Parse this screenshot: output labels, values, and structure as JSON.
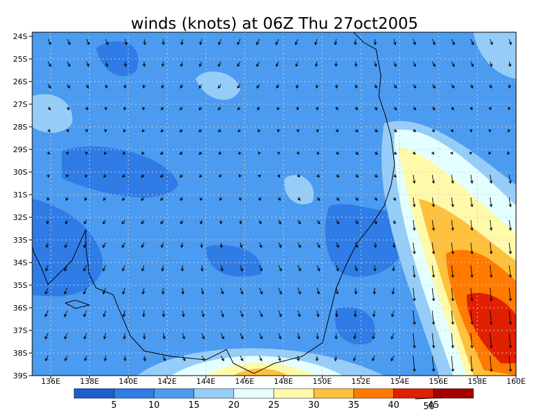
{
  "title": "winds (knots) at 06Z Thu 27oct2005",
  "lat_labels": [
    "24S",
    "25S",
    "26S",
    "27S",
    "28S",
    "29S",
    "30S",
    "31S",
    "32S",
    "33S",
    "34S",
    "35S",
    "36S",
    "37S",
    "38S",
    "39S"
  ],
  "lon_labels": [
    "136E",
    "138E",
    "140E",
    "142E",
    "144E",
    "146E",
    "148E",
    "150E",
    "152E",
    "154E",
    "156E",
    "158E",
    "160E"
  ],
  "colorbar": {
    "labels": [
      "5",
      "10",
      "15",
      "20",
      "25",
      "30",
      "35",
      "40",
      "45"
    ],
    "colors": [
      "#1a5fd0",
      "#2f7ce6",
      "#4b9bf0",
      "#96cdf8",
      "#e4ffff",
      "#fffaaa",
      "#ffc03c",
      "#ff7a00",
      "#e02000",
      "#a50000"
    ]
  },
  "reference_vector_label": "50"
}
